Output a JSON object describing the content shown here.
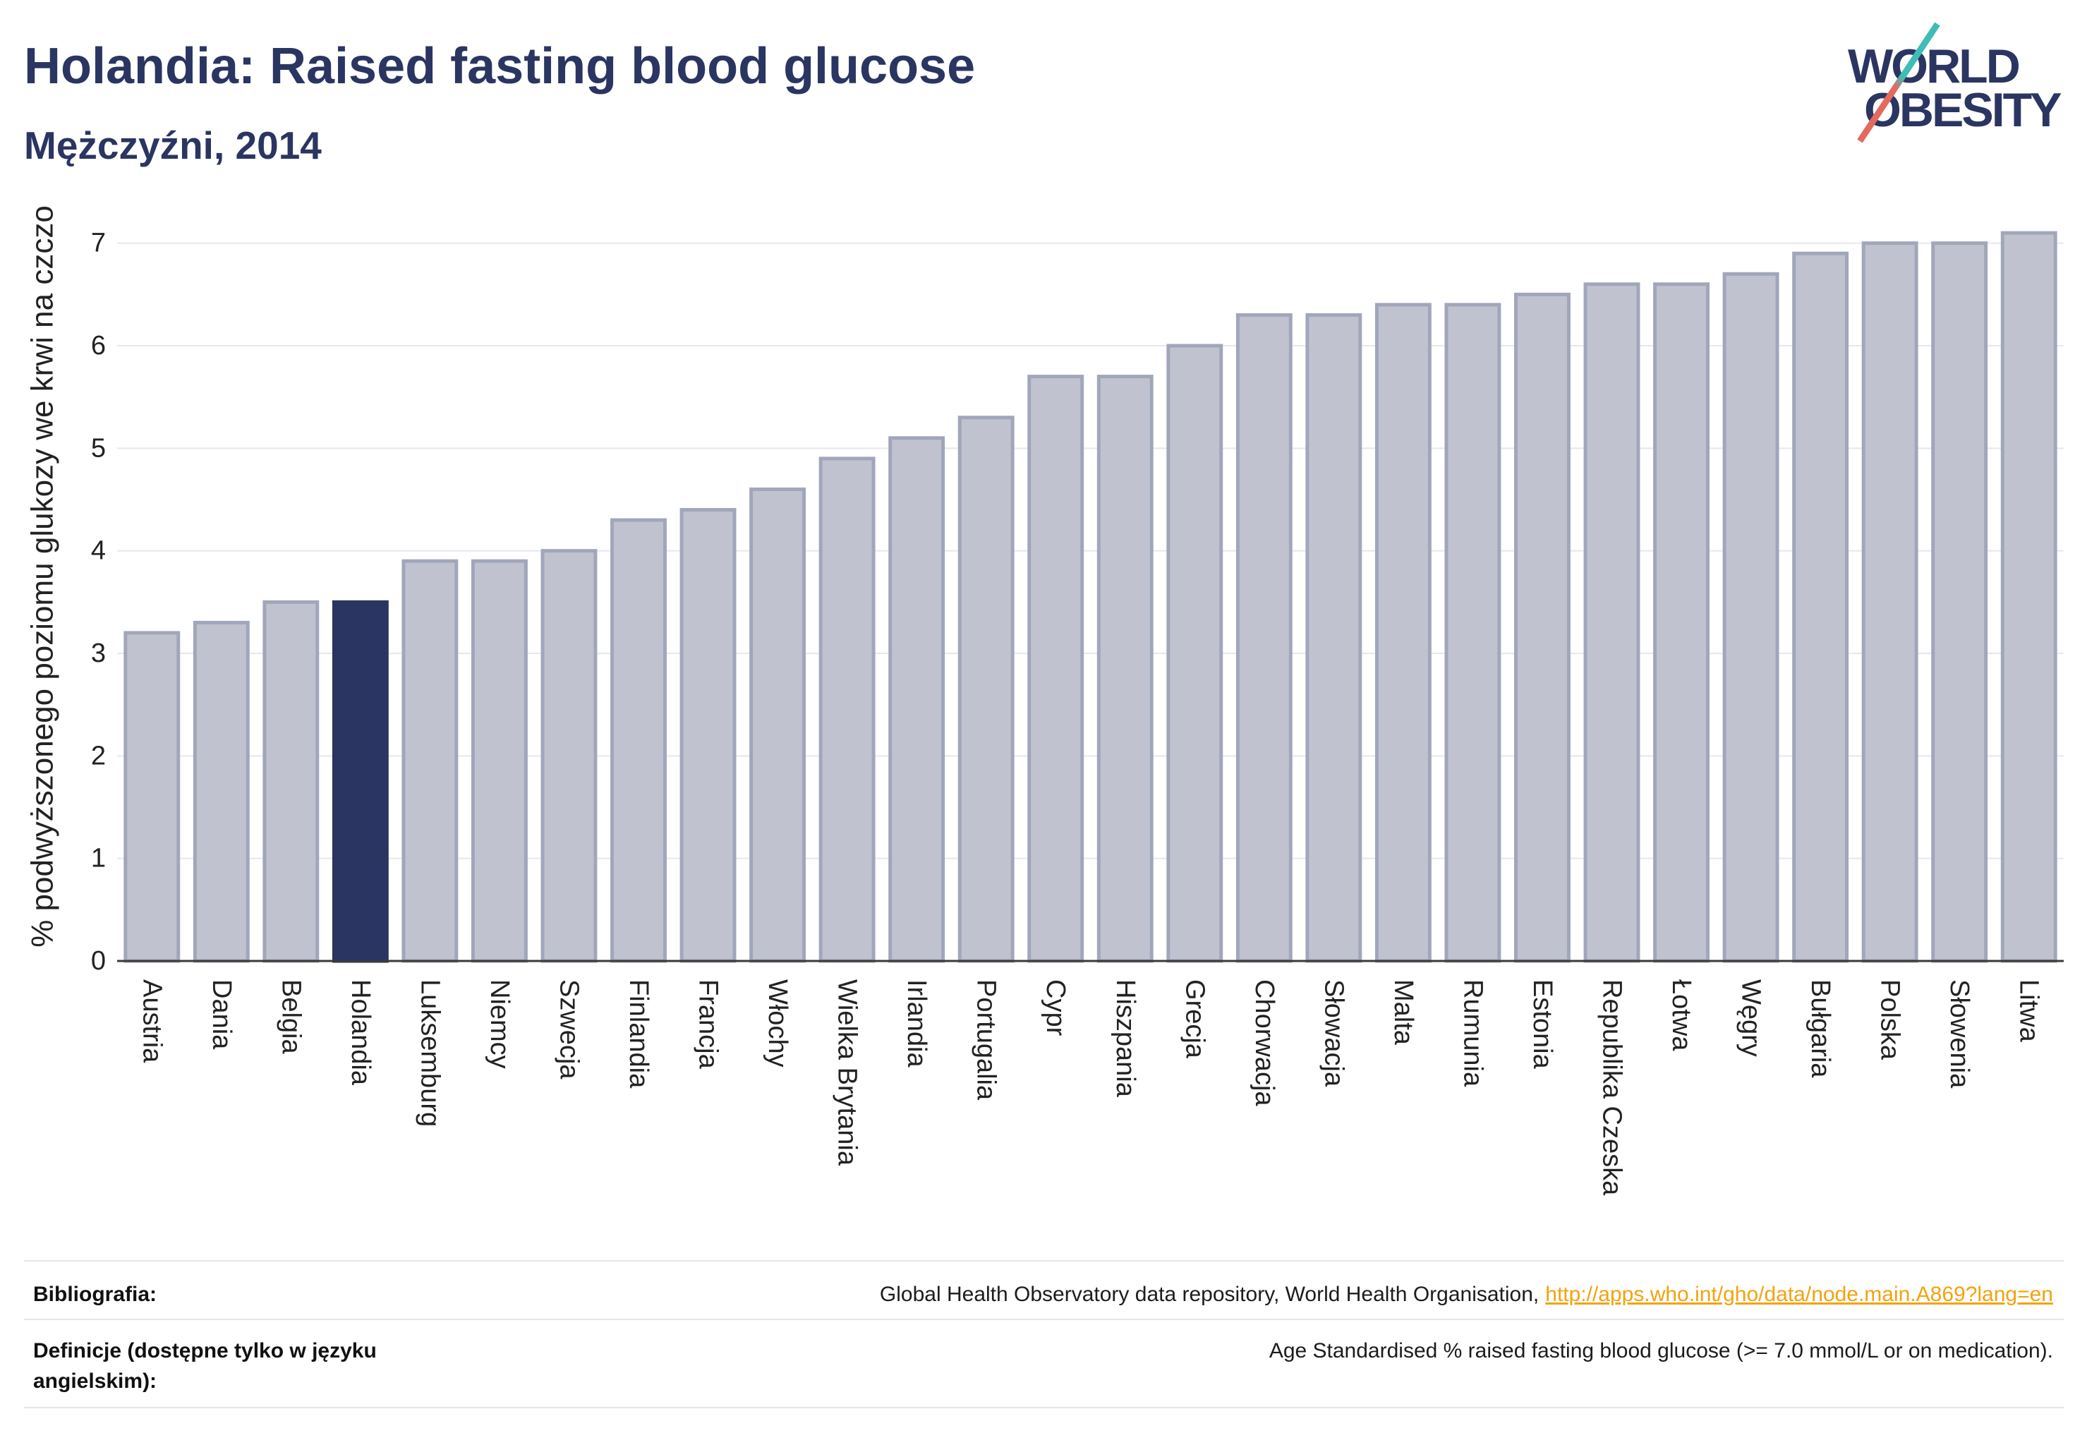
{
  "logo": {
    "line1": "WORLD",
    "line2": "OBESITY"
  },
  "theme": {
    "brand_navy": "#2b3561",
    "link_color": "#f2a30f",
    "logo_slash_top": "#3dbdb5",
    "logo_slash_bottom": "#e56a5e"
  },
  "chart_data": {
    "type": "bar",
    "title": "Holandia: Raised fasting blood glucose",
    "subtitle": "Mężczyźni, 2014",
    "ylabel": "% podwyższonego poziomu glukozy we krwi na czczo",
    "ylim": [
      0,
      7.5
    ],
    "yticks": [
      0,
      1,
      2,
      3,
      4,
      5,
      6,
      7
    ],
    "grid": true,
    "categories": [
      "Austria",
      "Dania",
      "Belgia",
      "Holandia",
      "Luksemburg",
      "Niemcy",
      "Szwecja",
      "Finlandia",
      "Francja",
      "Włochy",
      "Wielka Brytania",
      "Irlandia",
      "Portugalia",
      "Cypr",
      "Hiszpania",
      "Grecja",
      "Chorwacja",
      "Słowacja",
      "Malta",
      "Rumunia",
      "Estonia",
      "Republika Czeska",
      "Łotwa",
      "Węgry",
      "Bułgaria",
      "Polska",
      "Słowenia",
      "Litwa"
    ],
    "values": [
      3.2,
      3.3,
      3.5,
      3.5,
      3.9,
      3.9,
      4.0,
      4.3,
      4.4,
      4.6,
      4.9,
      5.1,
      5.3,
      5.7,
      5.7,
      6.0,
      6.3,
      6.3,
      6.4,
      6.4,
      6.5,
      6.6,
      6.6,
      6.7,
      6.9,
      7.0,
      7.0,
      7.1
    ],
    "highlight_index": 3,
    "colors": {
      "bar": "#c0c3cf",
      "bar_edge": "#a1a6ba",
      "highlight": "#2b3561",
      "axis": "#3a3a3a",
      "grid": "#e6e8ee"
    }
  },
  "footer": {
    "bibliography_label": "Bibliografia:",
    "bibliography_text": "Global Health Observatory data repository, World Health Organisation,",
    "bibliography_link": "http://apps.who.int/gho/data/node.main.A869?lang=en",
    "definitions_label": "Definicje (dostępne tylko w języku angielskim):",
    "definitions_text": "Age Standardised % raised fasting blood glucose (>= 7.0 mmol/L or on medication)."
  }
}
